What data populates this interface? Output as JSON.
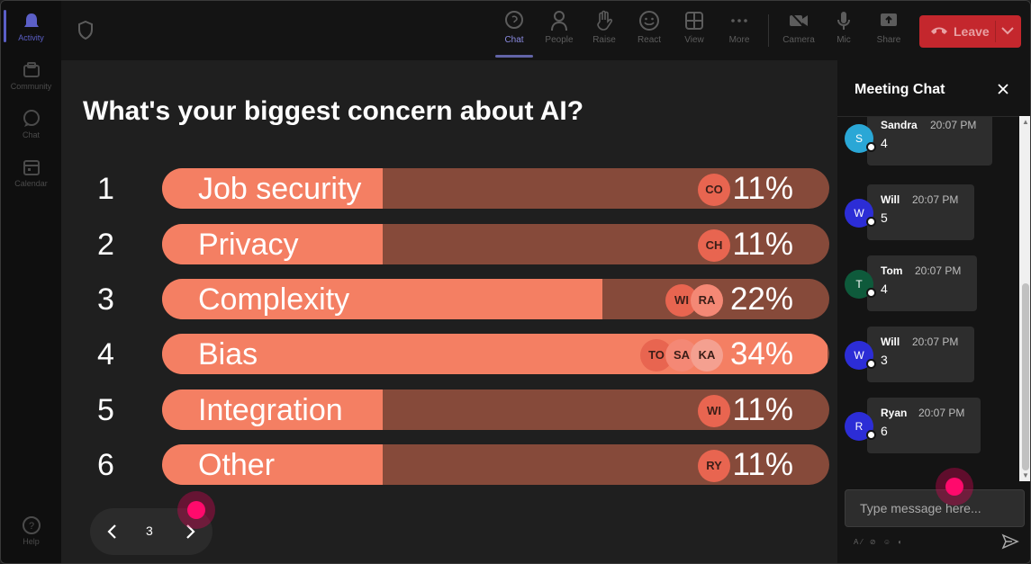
{
  "colors": {
    "accent": "#5b5fc7",
    "leave": "#c4272d",
    "bar_fill": "#f47f63",
    "bar_track": "#864a3a",
    "cursor": "#ff0a6c"
  },
  "rail": {
    "items": [
      {
        "label": "Activity",
        "icon": "bell-icon"
      },
      {
        "label": "Community",
        "icon": "community-icon"
      },
      {
        "label": "Chat",
        "icon": "chat-icon"
      },
      {
        "label": "Calendar",
        "icon": "calendar-icon"
      },
      {
        "label": "Help",
        "icon": "help-icon"
      }
    ]
  },
  "toolbar": {
    "buttons": [
      {
        "label": "Chat",
        "icon": "chat-bubble-icon"
      },
      {
        "label": "People",
        "icon": "people-icon"
      },
      {
        "label": "Raise",
        "icon": "raise-hand-icon"
      },
      {
        "label": "React",
        "icon": "smiley-icon"
      },
      {
        "label": "View",
        "icon": "grid-icon"
      },
      {
        "label": "More",
        "icon": "more-icon"
      },
      {
        "label": "Camera",
        "icon": "camera-off-icon"
      },
      {
        "label": "Mic",
        "icon": "mic-icon"
      },
      {
        "label": "Share",
        "icon": "share-icon"
      }
    ],
    "leave_label": "Leave"
  },
  "poll": {
    "question": "What's your biggest concern about AI?",
    "options": [
      {
        "num": "1",
        "label": "Job security",
        "percent": "11%",
        "value": 11,
        "avatars": [
          "CO"
        ]
      },
      {
        "num": "2",
        "label": "Privacy",
        "percent": "11%",
        "value": 11,
        "avatars": [
          "CH"
        ]
      },
      {
        "num": "3",
        "label": "Complexity",
        "percent": "22%",
        "value": 22,
        "avatars": [
          "WI",
          "RA"
        ]
      },
      {
        "num": "4",
        "label": "Bias",
        "percent": "34%",
        "value": 34,
        "avatars": [
          "TO",
          "SA",
          "KA"
        ]
      },
      {
        "num": "5",
        "label": "Integration",
        "percent": "11%",
        "value": 11,
        "avatars": [
          "WI"
        ]
      },
      {
        "num": "6",
        "label": "Other",
        "percent": "11%",
        "value": 11,
        "avatars": [
          "RY"
        ]
      }
    ],
    "page": "3"
  },
  "chat": {
    "title": "Meeting Chat",
    "messages": [
      {
        "initial": "S",
        "name": "Sandra",
        "time": "20:07 PM",
        "text": "4",
        "color": "#2aa7d6"
      },
      {
        "initial": "W",
        "name": "Will",
        "time": "20:07 PM",
        "text": "5",
        "color": "#2c2dd6"
      },
      {
        "initial": "T",
        "name": "Tom",
        "time": "20:07 PM",
        "text": "4",
        "color": "#0e5a3b"
      },
      {
        "initial": "W",
        "name": "Will",
        "time": "20:07 PM",
        "text": "3",
        "color": "#2c2dd6"
      },
      {
        "initial": "R",
        "name": "Ryan",
        "time": "20:07 PM",
        "text": "6",
        "color": "#2c2dd6"
      }
    ],
    "input_placeholder": "Type message here..."
  }
}
